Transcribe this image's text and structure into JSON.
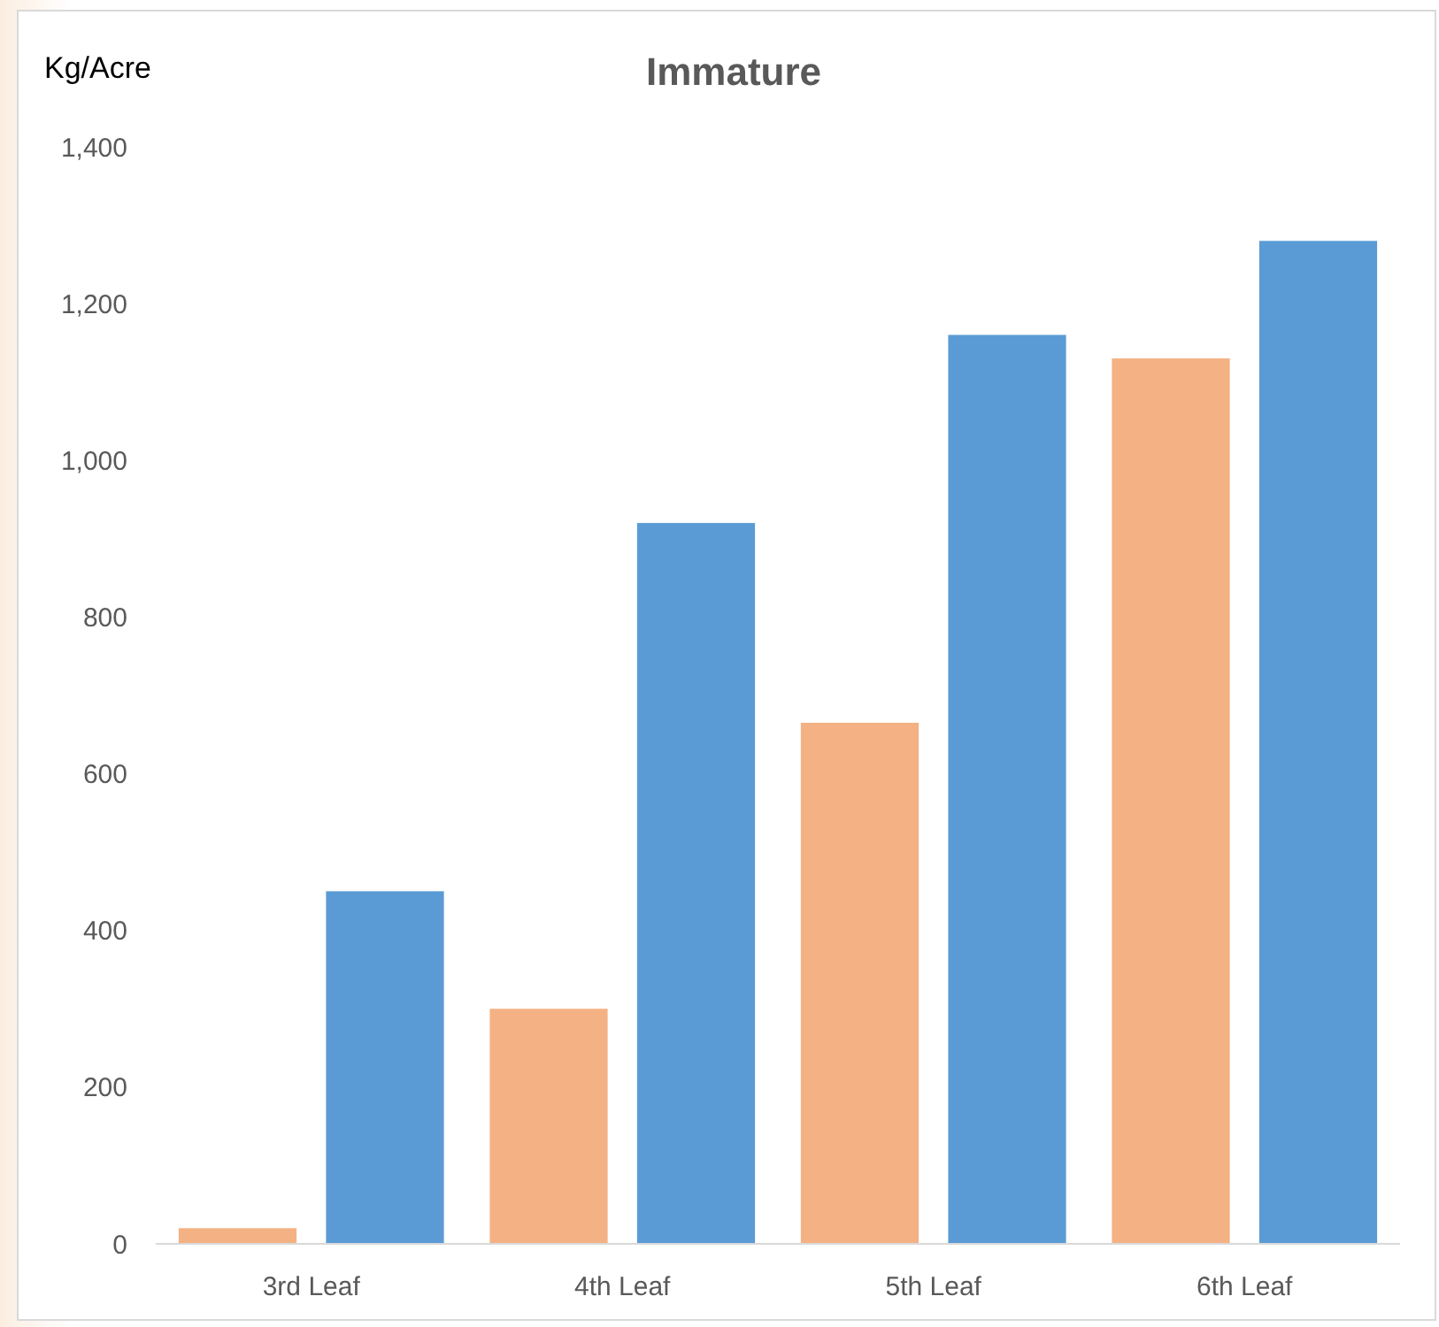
{
  "chart_data": {
    "type": "bar",
    "title": "Immature",
    "ylabel": "Kg/Acre",
    "categories": [
      "3rd Leaf",
      "4th Leaf",
      "5th Leaf",
      "6th Leaf"
    ],
    "series": [
      {
        "color": "#f4b183",
        "values": [
          20,
          300,
          665,
          1130
        ]
      },
      {
        "color": "#5b9bd5",
        "values": [
          450,
          920,
          1160,
          1280
        ]
      }
    ],
    "ylim": [
      0,
      1400
    ],
    "yticks": [
      0,
      {
        "value": 200,
        "label": "200"
      },
      {
        "value": 400,
        "label": "400"
      },
      {
        "value": 600,
        "label": "600"
      },
      {
        "value": 800,
        "label": "800"
      },
      {
        "value": 1000,
        "label": "1,000"
      },
      {
        "value": 1200,
        "label": "1,200"
      },
      {
        "value": 1400,
        "label": "1,400"
      }
    ],
    "grid": false
  }
}
